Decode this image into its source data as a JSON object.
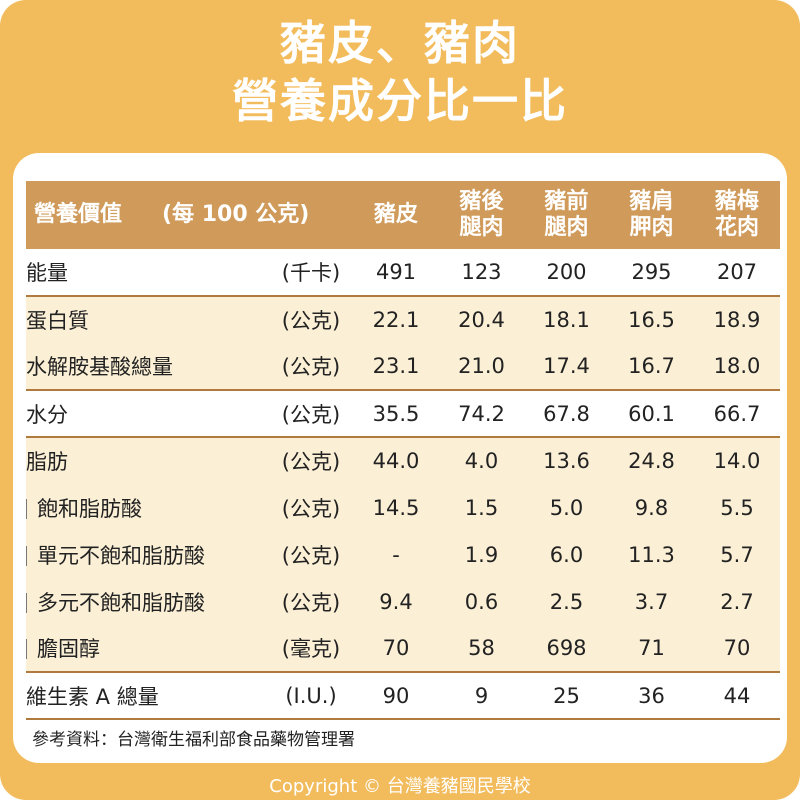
{
  "title": {
    "line1": "豬皮、豬肉",
    "line2": "營養成分比一比"
  },
  "colors": {
    "background": "#f2bc5d",
    "header": "#cf9a5a",
    "row_alt": "#fbf0d6",
    "rule": "#b07a3e"
  },
  "chart_data": {
    "type": "table",
    "header": {
      "label": "營養價值",
      "unit": "(每 100 公克)"
    },
    "columns": [
      {
        "line1": "豬皮",
        "line2": ""
      },
      {
        "line1": "豬後",
        "line2": "腿肉"
      },
      {
        "line1": "豬前",
        "line2": "腿肉"
      },
      {
        "line1": "豬肩",
        "line2": "胛肉"
      },
      {
        "line1": "豬梅",
        "line2": "花肉"
      }
    ],
    "rows": [
      {
        "label": "能量",
        "unit": "(千卡)",
        "values": [
          "491",
          "123",
          "200",
          "295",
          "207"
        ]
      },
      {
        "label": "蛋白質",
        "unit": "(公克)",
        "values": [
          "22.1",
          "20.4",
          "18.1",
          "16.5",
          "18.9"
        ]
      },
      {
        "label": "水解胺基酸總量",
        "unit": "(公克)",
        "values": [
          "23.1",
          "21.0",
          "17.4",
          "16.7",
          "18.0"
        ]
      },
      {
        "label": "水分",
        "unit": "(公克)",
        "values": [
          "35.5",
          "74.2",
          "67.8",
          "60.1",
          "66.7"
        ]
      },
      {
        "label": "脂肪",
        "unit": "(公克)",
        "values": [
          "44.0",
          "4.0",
          "13.6",
          "24.8",
          "14.0"
        ]
      },
      {
        "label": "飽和脂肪酸",
        "unit": "(公克)",
        "values": [
          "14.5",
          "1.5",
          "5.0",
          "9.8",
          "5.5"
        ]
      },
      {
        "label": "單元不飽和脂肪酸",
        "unit": "(公克)",
        "values": [
          "-",
          "1.9",
          "6.0",
          "11.3",
          "5.7"
        ]
      },
      {
        "label": "多元不飽和脂肪酸",
        "unit": "(公克)",
        "values": [
          "9.4",
          "0.6",
          "2.5",
          "3.7",
          "2.7"
        ]
      },
      {
        "label": "膽固醇",
        "unit": "(毫克)",
        "values": [
          "70",
          "58",
          "698",
          "71",
          "70"
        ]
      },
      {
        "label": "維生素 A 總量",
        "unit": "(I.U.)",
        "values": [
          "90",
          "9",
          "25",
          "36",
          "44"
        ]
      }
    ]
  },
  "source": "參考資料：台灣衛生福利部食品藥物管理署",
  "copyright": "Copyright © 台灣養豬國民學校"
}
